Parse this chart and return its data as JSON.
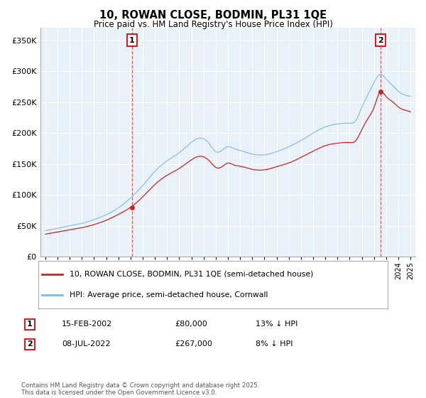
{
  "title": "10, ROWAN CLOSE, BODMIN, PL31 1QE",
  "subtitle": "Price paid vs. HM Land Registry's House Price Index (HPI)",
  "property_label": "10, ROWAN CLOSE, BODMIN, PL31 1QE (semi-detached house)",
  "hpi_label": "HPI: Average price, semi-detached house, Cornwall",
  "transaction1_date": "15-FEB-2002",
  "transaction1_price": 80000,
  "transaction1_note": "13% ↓ HPI",
  "transaction2_date": "08-JUL-2022",
  "transaction2_price": 267000,
  "transaction2_note": "8% ↓ HPI",
  "footer": "Contains HM Land Registry data © Crown copyright and database right 2025.\nThis data is licensed under the Open Government Licence v3.0.",
  "hpi_color": "#7bbce8",
  "property_color": "#cc2222",
  "marker1_x": 2002.12,
  "marker2_x": 2022.52,
  "ylim_max": 370000,
  "ylim_min": 0,
  "plot_bg_color": "#e8f0f8",
  "grid_color": "#ffffff",
  "fig_bg_color": "#ffffff"
}
